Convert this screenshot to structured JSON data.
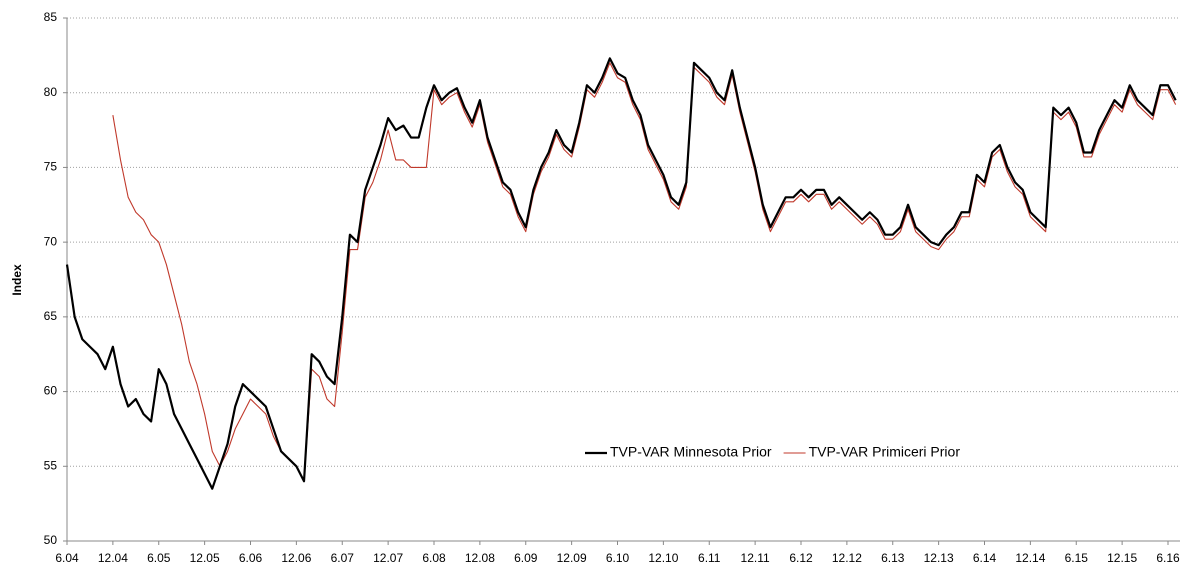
{
  "chart_data": {
    "type": "line",
    "y_label": "Index",
    "categories": [
      "6.04",
      null,
      null,
      null,
      null,
      null,
      "12.04",
      null,
      null,
      null,
      null,
      null,
      "6.05",
      null,
      null,
      null,
      null,
      null,
      "12.05",
      null,
      null,
      null,
      null,
      null,
      "6.06",
      null,
      null,
      null,
      null,
      null,
      "12.06",
      null,
      null,
      null,
      null,
      null,
      "6.07",
      null,
      null,
      null,
      null,
      null,
      "12.07",
      null,
      null,
      null,
      null,
      null,
      "6.08",
      null,
      null,
      null,
      null,
      null,
      "12.08",
      null,
      null,
      null,
      null,
      null,
      "6.09",
      null,
      null,
      null,
      null,
      null,
      "12.09",
      null,
      null,
      null,
      null,
      null,
      "6.10",
      null,
      null,
      null,
      null,
      null,
      "12.10",
      null,
      null,
      null,
      null,
      null,
      "6.11",
      null,
      null,
      null,
      null,
      null,
      "12.11",
      null,
      null,
      null,
      null,
      null,
      "6.12",
      null,
      null,
      null,
      null,
      null,
      "12.12",
      null,
      null,
      null,
      null,
      null,
      "6.13",
      null,
      null,
      null,
      null,
      null,
      "12.13",
      null,
      null,
      null,
      null,
      null,
      "6.14",
      null,
      null,
      null,
      null,
      null,
      "12.14",
      null,
      null,
      null,
      null,
      null,
      "6.15",
      null,
      null,
      null,
      null,
      null,
      "12.15",
      null,
      null,
      null,
      null,
      null,
      "6.16",
      null
    ],
    "series": [
      {
        "name": "TVP-VAR Minnesota Prior",
        "color": "#000000",
        "width": 2.2,
        "values": [
          68.5,
          65,
          63.5,
          63,
          62.5,
          61.5,
          63,
          60.5,
          59,
          59.5,
          58.5,
          58,
          61.5,
          60.5,
          58.5,
          57.5,
          56.5,
          55.5,
          54.5,
          53.5,
          55,
          56.5,
          59,
          60.5,
          60,
          59.5,
          59,
          57.5,
          56,
          55.5,
          55,
          54,
          62.5,
          62,
          61,
          60.5,
          65,
          70.5,
          70,
          73.5,
          75,
          76.5,
          78.3,
          77.5,
          77.8,
          77,
          77,
          79,
          80.5,
          79.5,
          80,
          80.3,
          79,
          78,
          79.5,
          77,
          75.5,
          74,
          73.5,
          72,
          71,
          73.5,
          75,
          76,
          77.5,
          76.5,
          76,
          78,
          80.5,
          80,
          81,
          82.3,
          81.3,
          81,
          79.5,
          78.5,
          76.5,
          75.5,
          74.5,
          73,
          72.5,
          74,
          82,
          81.5,
          81,
          80,
          79.5,
          81.5,
          79,
          77,
          75,
          72.5,
          71,
          72,
          73,
          73,
          73.5,
          73,
          73.5,
          73.5,
          72.5,
          73,
          72.5,
          72,
          71.5,
          72,
          71.5,
          70.5,
          70.5,
          71,
          72.5,
          71,
          70.5,
          70,
          69.8,
          70.5,
          71,
          72,
          72,
          74.5,
          74,
          76,
          76.5,
          75,
          74,
          73.5,
          72,
          71.5,
          71,
          79,
          78.5,
          79,
          78,
          76,
          76,
          77.5,
          78.5,
          79.5,
          79,
          80.5,
          79.5,
          79,
          78.5,
          80.5,
          80.5,
          79.5
        ]
      },
      {
        "name": "TVP-VAR Primiceri Prior",
        "color": "#c0392b",
        "width": 1.1,
        "values": [
          null,
          null,
          null,
          null,
          null,
          null,
          78.5,
          75.5,
          73,
          72,
          71.5,
          70.5,
          70,
          68.5,
          66.5,
          64.5,
          62,
          60.5,
          58.5,
          56,
          55,
          56,
          57.5,
          58.5,
          59.5,
          59,
          58.5,
          57,
          56,
          55.5,
          55,
          54,
          61.5,
          61,
          59.5,
          59,
          64,
          69.5,
          69.5,
          73,
          74,
          75.5,
          77.5,
          75.5,
          75.5,
          75,
          75,
          75,
          80.2,
          79.2,
          79.7,
          80,
          78.7,
          77.7,
          79.2,
          76.7,
          75.2,
          73.7,
          73.2,
          71.7,
          70.7,
          73.2,
          74.7,
          75.7,
          77.2,
          76.2,
          75.7,
          77.7,
          80.2,
          79.7,
          80.7,
          82,
          81,
          80.7,
          79.2,
          78.2,
          76.2,
          75.2,
          74.2,
          72.7,
          72.2,
          73.7,
          81.7,
          81.2,
          80.7,
          79.7,
          79.2,
          81.2,
          78.7,
          76.7,
          74.7,
          72.2,
          70.7,
          71.7,
          72.7,
          72.7,
          73.2,
          72.7,
          73.2,
          73.2,
          72.2,
          72.7,
          72.2,
          71.7,
          71.2,
          71.7,
          71.2,
          70.2,
          70.2,
          70.7,
          72.2,
          70.7,
          70.2,
          69.7,
          69.5,
          70.2,
          70.7,
          71.7,
          71.7,
          74.2,
          73.7,
          75.7,
          76.2,
          74.7,
          73.7,
          73.2,
          71.7,
          71.2,
          70.7,
          78.7,
          78.2,
          78.7,
          77.7,
          75.7,
          75.7,
          77.2,
          78.2,
          79.2,
          78.7,
          80.2,
          79.2,
          78.7,
          78.2,
          80.2,
          80.2,
          79.2
        ]
      }
    ],
    "ylim": [
      50,
      85
    ],
    "yticks": [
      50,
      55,
      60,
      65,
      70,
      75,
      80,
      85
    ],
    "grid": true,
    "legend": "lower right"
  }
}
